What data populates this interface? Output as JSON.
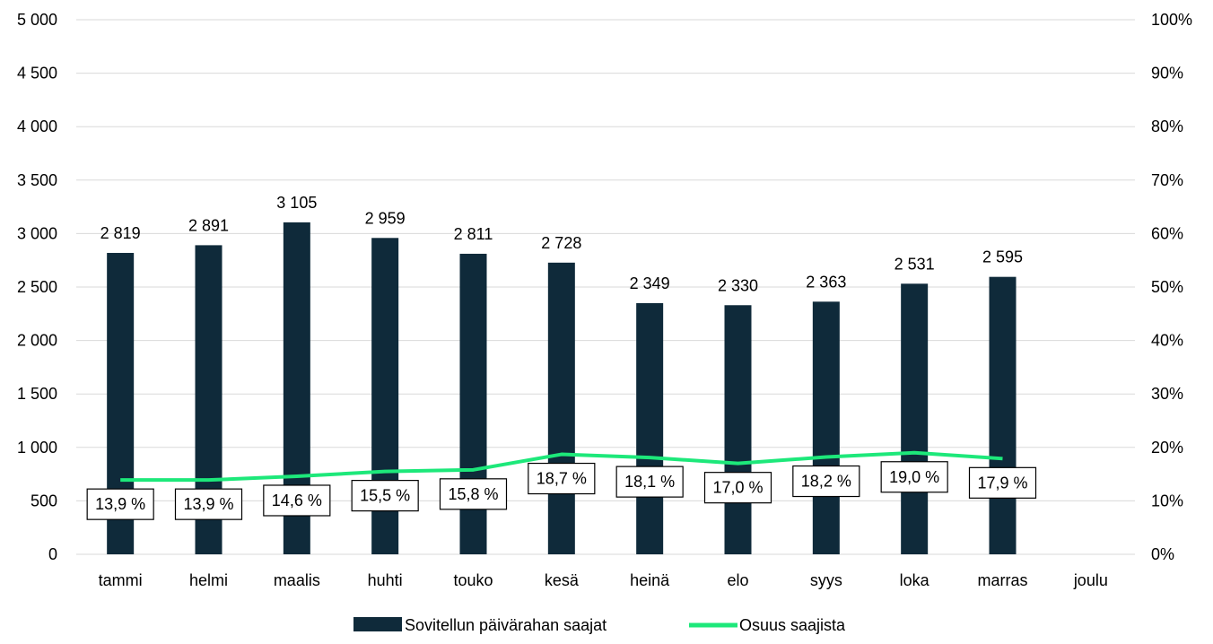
{
  "chart_data": {
    "type": "bar",
    "categories": [
      "tammi",
      "helmi",
      "maalis",
      "huhti",
      "touko",
      "kesä",
      "heinä",
      "elo",
      "syys",
      "loka",
      "marras",
      "joulu"
    ],
    "series": [
      {
        "name": "Sovitellun päivärahan saajat",
        "type": "bar",
        "axis": "left",
        "values": [
          2819,
          2891,
          3105,
          2959,
          2811,
          2728,
          2349,
          2330,
          2363,
          2531,
          2595,
          null
        ],
        "labels": [
          "2 819",
          "2 891",
          "3 105",
          "2 959",
          "2 811",
          "2 728",
          "2 349",
          "2 330",
          "2 363",
          "2 531",
          "2 595",
          ""
        ]
      },
      {
        "name": "Osuus saajista",
        "type": "line",
        "axis": "right",
        "values": [
          13.9,
          13.9,
          14.6,
          15.5,
          15.8,
          18.7,
          18.1,
          17.0,
          18.2,
          19.0,
          17.9,
          null
        ],
        "labels": [
          "13,9 %",
          "13,9 %",
          "14,6 %",
          "15,5 %",
          "15,8 %",
          "18,7 %",
          "18,1 %",
          "17,0 %",
          "18,2 %",
          "19,0 %",
          "17,9 %",
          ""
        ]
      }
    ],
    "y_left": {
      "lim": [
        0,
        5000
      ],
      "ticks": [
        0,
        500,
        1000,
        1500,
        2000,
        2500,
        3000,
        3500,
        4000,
        4500,
        5000
      ],
      "tick_labels": [
        "0",
        "500",
        "1 000",
        "1 500",
        "2 000",
        "2 500",
        "3 000",
        "3 500",
        "4 000",
        "4 500",
        "5 000"
      ]
    },
    "y_right": {
      "lim": [
        0,
        100
      ],
      "ticks": [
        0,
        10,
        20,
        30,
        40,
        50,
        60,
        70,
        80,
        90,
        100
      ],
      "tick_labels": [
        "0%",
        "10%",
        "20%",
        "30%",
        "40%",
        "50%",
        "60%",
        "70%",
        "80%",
        "90%",
        "100%"
      ]
    },
    "grid": true,
    "legend_position": "bottom",
    "colors": {
      "bar": "#0f2a3a",
      "line": "#1de87a",
      "grid": "#d9d9d9"
    }
  }
}
